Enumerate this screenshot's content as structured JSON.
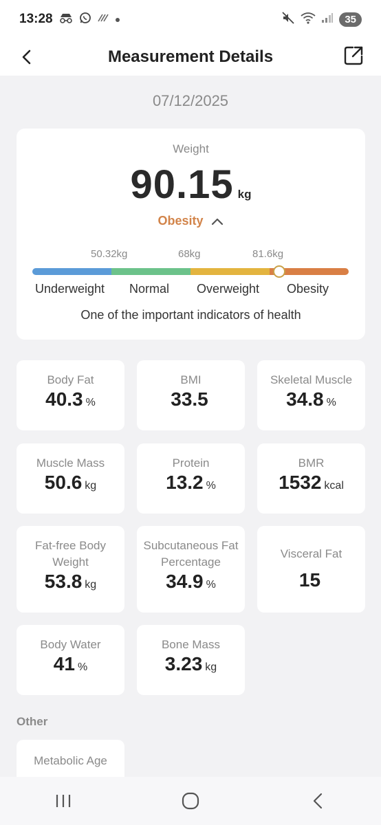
{
  "status_bar": {
    "time": "13:28",
    "icons_left": [
      "incognito-icon",
      "whatsapp-icon",
      "data-icon",
      "dot-icon"
    ],
    "icons_right": [
      "mute-icon",
      "wifi-icon",
      "signal-icon"
    ],
    "battery": "35"
  },
  "header": {
    "title": "Measurement Details",
    "back_icon": "chevron-left-icon",
    "share_icon": "share-external-icon"
  },
  "date": "07/12/2025",
  "weight_card": {
    "label": "Weight",
    "value": "90.15",
    "unit": "kg",
    "status": "Obesity",
    "status_color": "#d2844a",
    "thresholds": [
      "50.32kg",
      "68kg",
      "81.6kg"
    ],
    "categories": [
      "Underweight",
      "Normal",
      "Overweight",
      "Obesity"
    ],
    "category_colors": [
      "#5b9bd8",
      "#6cc28a",
      "#e3b43f",
      "#d97f45"
    ],
    "marker_position_fraction": 0.78,
    "note": "One of the important indicators of health"
  },
  "metrics": [
    {
      "label": "Body Fat",
      "value": "40.3",
      "unit": "%"
    },
    {
      "label": "BMI",
      "value": "33.5",
      "unit": ""
    },
    {
      "label": "Skeletal Muscle",
      "value": "34.8",
      "unit": "%"
    },
    {
      "label": "Muscle Mass",
      "value": "50.6",
      "unit": "kg"
    },
    {
      "label": "Protein",
      "value": "13.2",
      "unit": "%"
    },
    {
      "label": "BMR",
      "value": "1532",
      "unit": "kcal"
    },
    {
      "label": "Fat-free Body Weight",
      "value": "53.8",
      "unit": "kg"
    },
    {
      "label": "Subcutaneous Fat Percentage",
      "value": "34.9",
      "unit": "%"
    },
    {
      "label": "Visceral Fat",
      "value": "15",
      "unit": ""
    },
    {
      "label": "Body Water",
      "value": "41",
      "unit": "%"
    },
    {
      "label": "Bone Mass",
      "value": "3.23",
      "unit": "kg"
    }
  ],
  "other_section": {
    "title": "Other",
    "items": [
      {
        "label": "Metabolic Age"
      }
    ]
  },
  "nav": [
    "recents-icon",
    "home-icon",
    "back-icon"
  ]
}
